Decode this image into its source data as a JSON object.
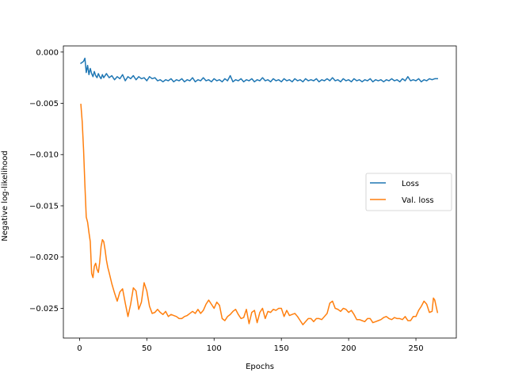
{
  "chart_data": {
    "type": "line",
    "xlabel": "Epochs",
    "ylabel": "Negative log-likelihood",
    "xlim": [
      -12,
      280
    ],
    "ylim": [
      -0.0279,
      0.0006
    ],
    "xticks": [
      0,
      50,
      100,
      150,
      200,
      250
    ],
    "xtick_labels": [
      "0",
      "50",
      "100",
      "150",
      "200",
      "250"
    ],
    "yticks": [
      0.0,
      -0.005,
      -0.01,
      -0.015,
      -0.02,
      -0.025
    ],
    "ytick_labels": [
      "0.000",
      "−0.005",
      "−0.010",
      "−0.015",
      "−0.020",
      "−0.025"
    ],
    "grid": false,
    "legend_position": "center-right",
    "series": [
      {
        "name": "Loss",
        "color": "#1f77b4",
        "points": [
          [
            1,
            -0.0011
          ],
          [
            2,
            -0.001
          ],
          [
            3,
            -0.0009
          ],
          [
            4,
            -0.0006
          ],
          [
            5,
            -0.002
          ],
          [
            6,
            -0.0013
          ],
          [
            7,
            -0.0022
          ],
          [
            8,
            -0.0016
          ],
          [
            9,
            -0.0021
          ],
          [
            10,
            -0.0024
          ],
          [
            11,
            -0.0019
          ],
          [
            12,
            -0.0023
          ],
          [
            13,
            -0.0025
          ],
          [
            14,
            -0.0021
          ],
          [
            15,
            -0.0024
          ],
          [
            16,
            -0.0026
          ],
          [
            17,
            -0.0022
          ],
          [
            18,
            -0.0025
          ],
          [
            19,
            -0.0023
          ],
          [
            20,
            -0.0021
          ],
          [
            22,
            -0.0025
          ],
          [
            24,
            -0.0023
          ],
          [
            26,
            -0.0027
          ],
          [
            28,
            -0.0024
          ],
          [
            30,
            -0.0026
          ],
          [
            32,
            -0.0022
          ],
          [
            34,
            -0.0028
          ],
          [
            36,
            -0.0024
          ],
          [
            38,
            -0.0026
          ],
          [
            40,
            -0.0023
          ],
          [
            42,
            -0.0027
          ],
          [
            44,
            -0.0024
          ],
          [
            46,
            -0.0026
          ],
          [
            48,
            -0.0025
          ],
          [
            50,
            -0.0028
          ],
          [
            52,
            -0.0024
          ],
          [
            54,
            -0.0026
          ],
          [
            56,
            -0.0025
          ],
          [
            58,
            -0.0028
          ],
          [
            60,
            -0.0027
          ],
          [
            62,
            -0.0029
          ],
          [
            64,
            -0.0027
          ],
          [
            66,
            -0.0028
          ],
          [
            68,
            -0.0026
          ],
          [
            70,
            -0.0029
          ],
          [
            72,
            -0.0027
          ],
          [
            74,
            -0.0028
          ],
          [
            76,
            -0.0026
          ],
          [
            78,
            -0.0029
          ],
          [
            80,
            -0.0027
          ],
          [
            82,
            -0.0028
          ],
          [
            84,
            -0.0025
          ],
          [
            86,
            -0.0029
          ],
          [
            88,
            -0.0027
          ],
          [
            90,
            -0.0028
          ],
          [
            92,
            -0.0025
          ],
          [
            94,
            -0.0028
          ],
          [
            96,
            -0.0027
          ],
          [
            98,
            -0.0029
          ],
          [
            100,
            -0.0026
          ],
          [
            102,
            -0.0028
          ],
          [
            104,
            -0.0027
          ],
          [
            106,
            -0.0029
          ],
          [
            108,
            -0.0026
          ],
          [
            110,
            -0.0028
          ],
          [
            112,
            -0.0023
          ],
          [
            114,
            -0.0029
          ],
          [
            116,
            -0.0027
          ],
          [
            118,
            -0.0028
          ],
          [
            120,
            -0.0026
          ],
          [
            122,
            -0.0029
          ],
          [
            124,
            -0.0027
          ],
          [
            126,
            -0.0028
          ],
          [
            128,
            -0.0026
          ],
          [
            130,
            -0.0029
          ],
          [
            132,
            -0.0027
          ],
          [
            134,
            -0.0028
          ],
          [
            136,
            -0.0025
          ],
          [
            138,
            -0.0028
          ],
          [
            140,
            -0.0027
          ],
          [
            142,
            -0.0029
          ],
          [
            144,
            -0.0026
          ],
          [
            146,
            -0.0028
          ],
          [
            148,
            -0.0027
          ],
          [
            150,
            -0.0029
          ],
          [
            152,
            -0.0026
          ],
          [
            154,
            -0.0028
          ],
          [
            156,
            -0.0027
          ],
          [
            158,
            -0.0029
          ],
          [
            160,
            -0.0026
          ],
          [
            162,
            -0.0028
          ],
          [
            164,
            -0.0027
          ],
          [
            166,
            -0.0029
          ],
          [
            168,
            -0.0026
          ],
          [
            170,
            -0.0028
          ],
          [
            172,
            -0.0027
          ],
          [
            174,
            -0.0028
          ],
          [
            176,
            -0.0026
          ],
          [
            178,
            -0.0029
          ],
          [
            180,
            -0.0027
          ],
          [
            182,
            -0.0028
          ],
          [
            184,
            -0.0026
          ],
          [
            186,
            -0.0028
          ],
          [
            188,
            -0.0025
          ],
          [
            190,
            -0.0028
          ],
          [
            192,
            -0.0027
          ],
          [
            194,
            -0.0029
          ],
          [
            196,
            -0.0026
          ],
          [
            198,
            -0.0028
          ],
          [
            200,
            -0.0027
          ],
          [
            202,
            -0.0029
          ],
          [
            204,
            -0.0026
          ],
          [
            206,
            -0.0028
          ],
          [
            208,
            -0.0027
          ],
          [
            210,
            -0.0029
          ],
          [
            212,
            -0.0027
          ],
          [
            214,
            -0.0028
          ],
          [
            216,
            -0.0026
          ],
          [
            218,
            -0.0029
          ],
          [
            220,
            -0.0027
          ],
          [
            222,
            -0.0028
          ],
          [
            224,
            -0.0027
          ],
          [
            226,
            -0.0029
          ],
          [
            228,
            -0.0027
          ],
          [
            230,
            -0.0028
          ],
          [
            232,
            -0.0026
          ],
          [
            234,
            -0.0028
          ],
          [
            236,
            -0.0027
          ],
          [
            238,
            -0.0029
          ],
          [
            240,
            -0.0026
          ],
          [
            242,
            -0.0028
          ],
          [
            244,
            -0.0024
          ],
          [
            246,
            -0.0028
          ],
          [
            248,
            -0.0027
          ],
          [
            250,
            -0.0028
          ],
          [
            252,
            -0.0026
          ],
          [
            254,
            -0.0029
          ],
          [
            256,
            -0.0027
          ],
          [
            258,
            -0.0028
          ],
          [
            260,
            -0.0026
          ],
          [
            262,
            -0.0027
          ],
          [
            264,
            -0.0026
          ],
          [
            266,
            -0.0026
          ]
        ]
      },
      {
        "name": "Val. loss",
        "color": "#ff7f0e",
        "points": [
          [
            1,
            -0.0051
          ],
          [
            2,
            -0.0068
          ],
          [
            3,
            -0.0095
          ],
          [
            4,
            -0.013
          ],
          [
            5,
            -0.0161
          ],
          [
            6,
            -0.0166
          ],
          [
            7,
            -0.0176
          ],
          [
            8,
            -0.0185
          ],
          [
            9,
            -0.0216
          ],
          [
            10,
            -0.022
          ],
          [
            11,
            -0.0209
          ],
          [
            12,
            -0.0206
          ],
          [
            13,
            -0.0212
          ],
          [
            14,
            -0.0215
          ],
          [
            15,
            -0.0205
          ],
          [
            16,
            -0.019
          ],
          [
            17,
            -0.0183
          ],
          [
            18,
            -0.0185
          ],
          [
            19,
            -0.0193
          ],
          [
            20,
            -0.0203
          ],
          [
            21,
            -0.021
          ],
          [
            22,
            -0.0215
          ],
          [
            24,
            -0.0226
          ],
          [
            26,
            -0.0235
          ],
          [
            28,
            -0.0243
          ],
          [
            30,
            -0.0234
          ],
          [
            32,
            -0.0231
          ],
          [
            34,
            -0.0245
          ],
          [
            36,
            -0.0258
          ],
          [
            38,
            -0.0246
          ],
          [
            40,
            -0.023
          ],
          [
            42,
            -0.0233
          ],
          [
            44,
            -0.0251
          ],
          [
            46,
            -0.0244
          ],
          [
            48,
            -0.0225
          ],
          [
            50,
            -0.0233
          ],
          [
            52,
            -0.0248
          ],
          [
            54,
            -0.0255
          ],
          [
            56,
            -0.0254
          ],
          [
            58,
            -0.0251
          ],
          [
            60,
            -0.0254
          ],
          [
            62,
            -0.0256
          ],
          [
            64,
            -0.0253
          ],
          [
            66,
            -0.0258
          ],
          [
            68,
            -0.0256
          ],
          [
            70,
            -0.0257
          ],
          [
            72,
            -0.0258
          ],
          [
            74,
            -0.026
          ],
          [
            76,
            -0.026
          ],
          [
            78,
            -0.0258
          ],
          [
            80,
            -0.0257
          ],
          [
            82,
            -0.0255
          ],
          [
            84,
            -0.0253
          ],
          [
            86,
            -0.0255
          ],
          [
            88,
            -0.0251
          ],
          [
            90,
            -0.0255
          ],
          [
            92,
            -0.0252
          ],
          [
            94,
            -0.0246
          ],
          [
            96,
            -0.0242
          ],
          [
            98,
            -0.0246
          ],
          [
            100,
            -0.025
          ],
          [
            102,
            -0.0244
          ],
          [
            104,
            -0.0247
          ],
          [
            106,
            -0.026
          ],
          [
            108,
            -0.0262
          ],
          [
            110,
            -0.0258
          ],
          [
            112,
            -0.0256
          ],
          [
            114,
            -0.0253
          ],
          [
            116,
            -0.0251
          ],
          [
            118,
            -0.0256
          ],
          [
            120,
            -0.026
          ],
          [
            122,
            -0.0259
          ],
          [
            124,
            -0.0251
          ],
          [
            126,
            -0.0265
          ],
          [
            128,
            -0.0254
          ],
          [
            130,
            -0.0252
          ],
          [
            132,
            -0.0264
          ],
          [
            134,
            -0.0254
          ],
          [
            136,
            -0.025
          ],
          [
            138,
            -0.026
          ],
          [
            140,
            -0.0253
          ],
          [
            142,
            -0.0254
          ],
          [
            144,
            -0.0251
          ],
          [
            146,
            -0.0252
          ],
          [
            148,
            -0.025
          ],
          [
            150,
            -0.025
          ],
          [
            152,
            -0.0258
          ],
          [
            154,
            -0.0252
          ],
          [
            156,
            -0.0257
          ],
          [
            158,
            -0.0256
          ],
          [
            160,
            -0.0255
          ],
          [
            162,
            -0.0258
          ],
          [
            164,
            -0.0262
          ],
          [
            166,
            -0.0266
          ],
          [
            168,
            -0.0263
          ],
          [
            170,
            -0.026
          ],
          [
            172,
            -0.026
          ],
          [
            174,
            -0.0263
          ],
          [
            176,
            -0.026
          ],
          [
            178,
            -0.026
          ],
          [
            180,
            -0.0261
          ],
          [
            182,
            -0.0258
          ],
          [
            184,
            -0.0255
          ],
          [
            186,
            -0.0245
          ],
          [
            188,
            -0.0243
          ],
          [
            190,
            -0.025
          ],
          [
            192,
            -0.0251
          ],
          [
            194,
            -0.0253
          ],
          [
            196,
            -0.025
          ],
          [
            198,
            -0.0251
          ],
          [
            200,
            -0.0254
          ],
          [
            202,
            -0.0252
          ],
          [
            204,
            -0.0256
          ],
          [
            206,
            -0.0261
          ],
          [
            208,
            -0.0261
          ],
          [
            210,
            -0.0262
          ],
          [
            212,
            -0.0263
          ],
          [
            214,
            -0.026
          ],
          [
            216,
            -0.026
          ],
          [
            218,
            -0.0264
          ],
          [
            220,
            -0.0263
          ],
          [
            222,
            -0.0262
          ],
          [
            224,
            -0.0261
          ],
          [
            226,
            -0.0259
          ],
          [
            228,
            -0.0258
          ],
          [
            230,
            -0.026
          ],
          [
            232,
            -0.0261
          ],
          [
            234,
            -0.0259
          ],
          [
            236,
            -0.026
          ],
          [
            238,
            -0.026
          ],
          [
            240,
            -0.0261
          ],
          [
            242,
            -0.0258
          ],
          [
            244,
            -0.0262
          ],
          [
            246,
            -0.0262
          ],
          [
            248,
            -0.0258
          ],
          [
            250,
            -0.0258
          ],
          [
            252,
            -0.0252
          ],
          [
            254,
            -0.0248
          ],
          [
            256,
            -0.0243
          ],
          [
            258,
            -0.0246
          ],
          [
            260,
            -0.0254
          ],
          [
            262,
            -0.0253
          ],
          [
            263,
            -0.024
          ],
          [
            264,
            -0.0242
          ],
          [
            265,
            -0.0248
          ],
          [
            266,
            -0.0254
          ]
        ]
      }
    ]
  }
}
